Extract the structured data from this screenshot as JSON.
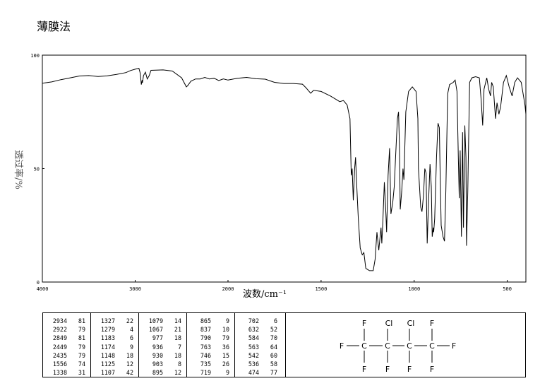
{
  "title": "薄膜法",
  "chart_data": {
    "type": "line",
    "title": "薄膜法",
    "xlabel": "波数/cm⁻¹",
    "ylabel": "透过率/%",
    "xlim": [
      4000,
      400
    ],
    "ylim": [
      0,
      100
    ],
    "x_ticks": [
      4000,
      3000,
      2000,
      1500,
      1000,
      500
    ],
    "y_ticks": [
      0,
      50,
      100
    ],
    "grid": false,
    "series": [
      {
        "points": [
          [
            4000,
            87.6
          ],
          [
            3900,
            88.2
          ],
          [
            3800,
            89.2
          ],
          [
            3700,
            90.0
          ],
          [
            3600,
            90.8
          ],
          [
            3500,
            91.0
          ],
          [
            3400,
            90.6
          ],
          [
            3300,
            90.9
          ],
          [
            3200,
            91.5
          ],
          [
            3100,
            92.3
          ],
          [
            3050,
            93.2
          ],
          [
            3000,
            93.8
          ],
          [
            2960,
            94.2
          ],
          [
            2945,
            92.0
          ],
          [
            2934,
            87.0
          ],
          [
            2925,
            89.0
          ],
          [
            2922,
            87.8
          ],
          [
            2910,
            91.0
          ],
          [
            2890,
            92.5
          ],
          [
            2870,
            89.5
          ],
          [
            2849,
            91.0
          ],
          [
            2830,
            93.3
          ],
          [
            2700,
            93.5
          ],
          [
            2600,
            93.0
          ],
          [
            2500,
            90.0
          ],
          [
            2449,
            86.0
          ],
          [
            2435,
            86.5
          ],
          [
            2400,
            88.5
          ],
          [
            2350,
            89.5
          ],
          [
            2300,
            89.5
          ],
          [
            2250,
            90.2
          ],
          [
            2200,
            89.5
          ],
          [
            2150,
            89.8
          ],
          [
            2100,
            88.8
          ],
          [
            2050,
            89.5
          ],
          [
            2000,
            89.0
          ],
          [
            1950,
            89.8
          ],
          [
            1900,
            90.2
          ],
          [
            1850,
            89.6
          ],
          [
            1800,
            89.4
          ],
          [
            1750,
            88.0
          ],
          [
            1700,
            87.5
          ],
          [
            1650,
            87.5
          ],
          [
            1600,
            87.2
          ],
          [
            1580,
            85.5
          ],
          [
            1556,
            83.2
          ],
          [
            1540,
            84.5
          ],
          [
            1500,
            84.0
          ],
          [
            1450,
            82.0
          ],
          [
            1420,
            80.5
          ],
          [
            1400,
            79.5
          ],
          [
            1380,
            80.0
          ],
          [
            1360,
            78.0
          ],
          [
            1345,
            72.0
          ],
          [
            1338,
            47.0
          ],
          [
            1333,
            50.0
          ],
          [
            1327,
            36.0
          ],
          [
            1320,
            50.0
          ],
          [
            1315,
            55.0
          ],
          [
            1310,
            45.0
          ],
          [
            1300,
            28.0
          ],
          [
            1290,
            15.0
          ],
          [
            1279,
            12.0
          ],
          [
            1270,
            13.0
          ],
          [
            1260,
            6.0
          ],
          [
            1240,
            5.0
          ],
          [
            1220,
            5.0
          ],
          [
            1210,
            10.0
          ],
          [
            1200,
            22.0
          ],
          [
            1195,
            18.0
          ],
          [
            1190,
            14.0
          ],
          [
            1183,
            20.0
          ],
          [
            1178,
            24.0
          ],
          [
            1174,
            17.0
          ],
          [
            1168,
            27.0
          ],
          [
            1160,
            44.0
          ],
          [
            1152,
            30.0
          ],
          [
            1148,
            22.0
          ],
          [
            1140,
            47.0
          ],
          [
            1132,
            59.0
          ],
          [
            1125,
            30.0
          ],
          [
            1115,
            35.0
          ],
          [
            1107,
            42.0
          ],
          [
            1100,
            55.0
          ],
          [
            1090,
            72.0
          ],
          [
            1084,
            75.0
          ],
          [
            1079,
            60.0
          ],
          [
            1075,
            32.0
          ],
          [
            1067,
            40.0
          ],
          [
            1060,
            50.0
          ],
          [
            1055,
            45.0
          ],
          [
            1045,
            75.0
          ],
          [
            1030,
            84.0
          ],
          [
            1010,
            86.0
          ],
          [
            990,
            84.0
          ],
          [
            980,
            72.0
          ],
          [
            977,
            50.0
          ],
          [
            970,
            40.0
          ],
          [
            965,
            33.0
          ],
          [
            958,
            31.0
          ],
          [
            950,
            38.0
          ],
          [
            943,
            50.0
          ],
          [
            936,
            48.0
          ],
          [
            930,
            17.0
          ],
          [
            922,
            37.0
          ],
          [
            915,
            52.0
          ],
          [
            908,
            42.0
          ],
          [
            903,
            20.0
          ],
          [
            898,
            24.0
          ],
          [
            895,
            22.0
          ],
          [
            890,
            28.0
          ],
          [
            880,
            55.0
          ],
          [
            872,
            70.0
          ],
          [
            865,
            68.0
          ],
          [
            860,
            45.0
          ],
          [
            855,
            25.0
          ],
          [
            845,
            20.0
          ],
          [
            837,
            18.0
          ],
          [
            830,
            40.0
          ],
          [
            820,
            83.0
          ],
          [
            810,
            87.0
          ],
          [
            790,
            88.0
          ],
          [
            780,
            89.0
          ],
          [
            770,
            84.0
          ],
          [
            763,
            55.0
          ],
          [
            758,
            37.0
          ],
          [
            753,
            58.0
          ],
          [
            746,
            20.0
          ],
          [
            740,
            66.0
          ],
          [
            735,
            24.0
          ],
          [
            728,
            69.0
          ],
          [
            722,
            55.0
          ],
          [
            719,
            16.0
          ],
          [
            712,
            40.0
          ],
          [
            706,
            70.0
          ],
          [
            702,
            88.0
          ],
          [
            690,
            90.0
          ],
          [
            670,
            90.5
          ],
          [
            650,
            90.0
          ],
          [
            640,
            80.0
          ],
          [
            632,
            69.0
          ],
          [
            625,
            85.0
          ],
          [
            610,
            90.0
          ],
          [
            600,
            85.0
          ],
          [
            590,
            82.0
          ],
          [
            584,
            88.0
          ],
          [
            575,
            86.0
          ],
          [
            563,
            72.0
          ],
          [
            555,
            79.0
          ],
          [
            545,
            74.0
          ],
          [
            542,
            75.0
          ],
          [
            536,
            77.0
          ],
          [
            520,
            88.0
          ],
          [
            505,
            91.0
          ],
          [
            490,
            86.0
          ],
          [
            474,
            82.0
          ],
          [
            460,
            88.0
          ],
          [
            445,
            90.0
          ],
          [
            425,
            88.0
          ],
          [
            405,
            78.0
          ],
          [
            400,
            74.0
          ]
        ]
      }
    ]
  },
  "peak_table": [
    [
      [
        "2934",
        "81"
      ],
      [
        "2922",
        "79"
      ],
      [
        "2849",
        "81"
      ],
      [
        "2449",
        "79"
      ],
      [
        "2435",
        "79"
      ],
      [
        "1556",
        "74"
      ],
      [
        "1338",
        "31"
      ]
    ],
    [
      [
        "1327",
        "22"
      ],
      [
        "1279",
        "4"
      ],
      [
        "1183",
        "6"
      ],
      [
        "1174",
        "9"
      ],
      [
        "1148",
        "18"
      ],
      [
        "1125",
        "12"
      ],
      [
        "1107",
        "42"
      ]
    ],
    [
      [
        "1079",
        "14"
      ],
      [
        "1067",
        "21"
      ],
      [
        "977",
        "18"
      ],
      [
        "936",
        "7"
      ],
      [
        "930",
        "18"
      ],
      [
        "903",
        "8"
      ],
      [
        "895",
        "12"
      ]
    ],
    [
      [
        "865",
        "9"
      ],
      [
        "837",
        "10"
      ],
      [
        "790",
        "79"
      ],
      [
        "763",
        "36"
      ],
      [
        "746",
        "15"
      ],
      [
        "735",
        "26"
      ],
      [
        "719",
        "9"
      ]
    ],
    [
      [
        "702",
        "6"
      ],
      [
        "632",
        "52"
      ],
      [
        "584",
        "70"
      ],
      [
        "563",
        "64"
      ],
      [
        "542",
        "60"
      ],
      [
        "536",
        "58"
      ],
      [
        "474",
        "77"
      ]
    ]
  ],
  "structure": {
    "atoms_top": [
      "F",
      "Cl",
      "Cl",
      "F"
    ],
    "atoms_mid": [
      "F",
      "C",
      "C",
      "C",
      "C",
      "F"
    ],
    "atoms_bottom": [
      "F",
      "F",
      "F",
      "F"
    ]
  }
}
